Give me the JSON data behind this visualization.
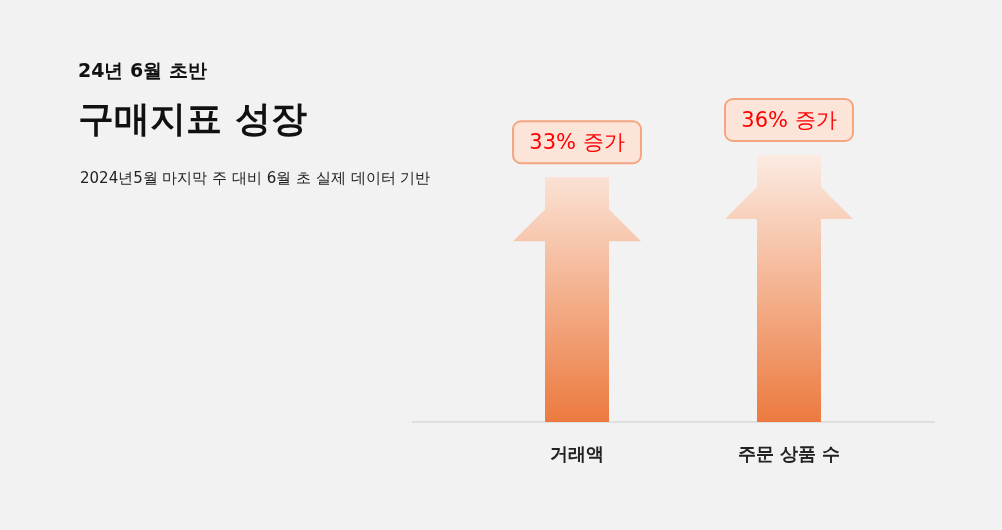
{
  "chart_data": {
    "type": "bar",
    "title": "구매지표 성장",
    "subtitle": "24년 6월 초반",
    "annotations": [
      "2024년5월 마지막 주 대비 6월 초 실제 데이터 기반"
    ],
    "categories": [
      "거래액",
      "주문 상품 수"
    ],
    "values": [
      33,
      36
    ],
    "value_labels": [
      "33% 증가",
      "36% 증가"
    ],
    "color": "#ec7a3f",
    "legend": false,
    "grid": false,
    "tick_labels": "x"
  }
}
